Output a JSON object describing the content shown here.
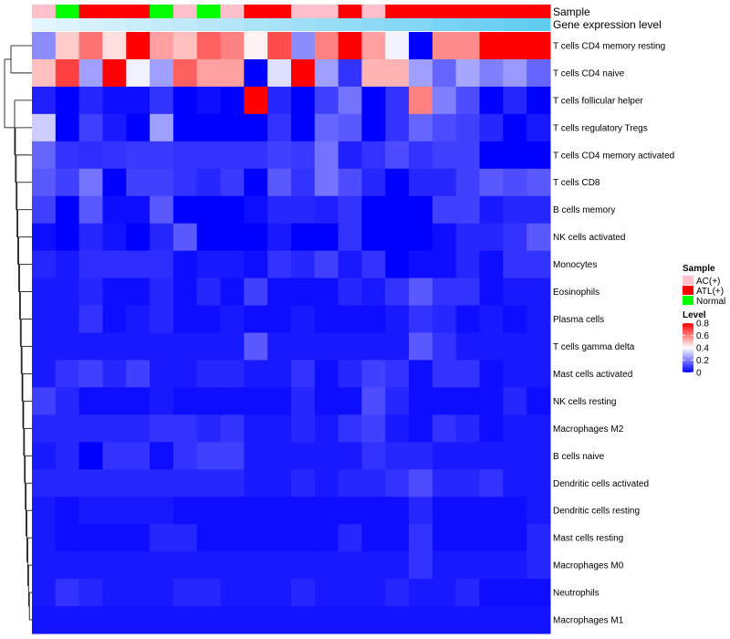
{
  "chart_data": {
    "type": "heatmap",
    "title": "",
    "annotation_tracks": {
      "sample_label": "Sample",
      "gene_label": "Gene expression level",
      "sample_groups": [
        "AC(+)",
        "Normal",
        "ATL(+)",
        "ATL(+)",
        "ATL(+)",
        "Normal",
        "AC(+)",
        "Normal",
        "AC(+)",
        "ATL(+)",
        "ATL(+)",
        "AC(+)",
        "AC(+)",
        "ATL(+)",
        "AC(+)",
        "ATL(+)",
        "ATL(+)",
        "ATL(+)",
        "ATL(+)",
        "ATL(+)",
        "ATL(+)",
        "ATL(+)"
      ],
      "gene_expression": [
        0.02,
        0.07,
        0.11,
        0.16,
        0.2,
        0.25,
        0.29,
        0.34,
        0.38,
        0.43,
        0.47,
        0.52,
        0.56,
        0.61,
        0.65,
        0.7,
        0.74,
        0.79,
        0.83,
        0.88,
        0.92,
        0.97
      ]
    },
    "rows": [
      "T cells CD4 memory resting",
      "T cells CD4 naive",
      "T cells follicular helper",
      "T cells regulatory  Tregs",
      "T cells CD4 memory activated",
      "T cells CD8",
      "B cells memory",
      "NK cells activated",
      "Monocytes",
      "Eosinophils",
      "Plasma cells",
      "T cells gamma delta",
      "Mast cells activated",
      "NK cells resting",
      "Macrophages M2",
      "B cells naive",
      "Dendritic cells activated",
      "Dendritic cells resting",
      "Mast cells resting",
      "Macrophages M0",
      "Neutrophils",
      "Macrophages M1"
    ],
    "values": [
      [
        0.22,
        0.48,
        0.62,
        0.45,
        0.8,
        0.55,
        0.5,
        0.65,
        0.6,
        0.42,
        0.68,
        0.22,
        0.6,
        0.8,
        0.55,
        0.38,
        0.0,
        0.58,
        0.58,
        0.8,
        0.8,
        0.8
      ],
      [
        0.5,
        0.7,
        0.25,
        0.8,
        0.38,
        0.25,
        0.65,
        0.55,
        0.55,
        0.0,
        0.35,
        0.8,
        0.25,
        0.08,
        0.52,
        0.52,
        0.25,
        0.16,
        0.26,
        0.2,
        0.24,
        0.16
      ],
      [
        0.05,
        0.0,
        0.06,
        0.02,
        0.02,
        0.08,
        0.0,
        0.02,
        0.0,
        0.8,
        0.06,
        0.0,
        0.1,
        0.18,
        0.0,
        0.08,
        0.6,
        0.2,
        0.12,
        0.0,
        0.06,
        0.0
      ],
      [
        0.32,
        0.0,
        0.1,
        0.04,
        0.0,
        0.25,
        0.0,
        0.0,
        0.0,
        0.0,
        0.08,
        0.0,
        0.16,
        0.14,
        0.0,
        0.08,
        0.16,
        0.12,
        0.1,
        0.06,
        0.0,
        0.04
      ],
      [
        0.16,
        0.08,
        0.07,
        0.08,
        0.09,
        0.09,
        0.08,
        0.08,
        0.08,
        0.08,
        0.1,
        0.09,
        0.18,
        0.05,
        0.08,
        0.12,
        0.08,
        0.1,
        0.1,
        0.0,
        0.0,
        0.0
      ],
      [
        0.14,
        0.1,
        0.18,
        0.0,
        0.1,
        0.1,
        0.08,
        0.06,
        0.09,
        0.0,
        0.14,
        0.08,
        0.18,
        0.12,
        0.06,
        0.0,
        0.06,
        0.06,
        0.1,
        0.14,
        0.12,
        0.14
      ],
      [
        0.1,
        0.0,
        0.14,
        0.02,
        0.02,
        0.14,
        0.0,
        0.0,
        0.0,
        0.02,
        0.06,
        0.06,
        0.05,
        0.08,
        0.0,
        0.0,
        0.0,
        0.1,
        0.1,
        0.04,
        0.06,
        0.06
      ],
      [
        0.02,
        0.0,
        0.06,
        0.03,
        0.0,
        0.06,
        0.14,
        0.0,
        0.0,
        0.0,
        0.04,
        0.0,
        0.0,
        0.08,
        0.0,
        0.0,
        0.0,
        0.02,
        0.06,
        0.06,
        0.08,
        0.14
      ],
      [
        0.06,
        0.04,
        0.07,
        0.07,
        0.07,
        0.07,
        0.02,
        0.04,
        0.04,
        0.02,
        0.08,
        0.06,
        0.1,
        0.04,
        0.08,
        0.0,
        0.02,
        0.02,
        0.06,
        0.02,
        0.08,
        0.08
      ],
      [
        0.04,
        0.04,
        0.06,
        0.02,
        0.02,
        0.06,
        0.02,
        0.06,
        0.02,
        0.1,
        0.02,
        0.02,
        0.02,
        0.06,
        0.04,
        0.08,
        0.14,
        0.08,
        0.08,
        0.02,
        0.04,
        0.04
      ],
      [
        0.04,
        0.04,
        0.08,
        0.02,
        0.04,
        0.06,
        0.02,
        0.02,
        0.04,
        0.02,
        0.02,
        0.04,
        0.02,
        0.02,
        0.02,
        0.04,
        0.08,
        0.06,
        0.02,
        0.04,
        0.02,
        0.04
      ],
      [
        0.04,
        0.04,
        0.04,
        0.04,
        0.04,
        0.04,
        0.04,
        0.04,
        0.04,
        0.14,
        0.04,
        0.04,
        0.04,
        0.04,
        0.04,
        0.04,
        0.14,
        0.08,
        0.04,
        0.04,
        0.04,
        0.04
      ],
      [
        0.04,
        0.08,
        0.1,
        0.06,
        0.1,
        0.04,
        0.04,
        0.06,
        0.06,
        0.04,
        0.04,
        0.08,
        0.02,
        0.06,
        0.1,
        0.08,
        0.02,
        0.08,
        0.08,
        0.02,
        0.04,
        0.04
      ],
      [
        0.1,
        0.06,
        0.02,
        0.02,
        0.02,
        0.04,
        0.02,
        0.02,
        0.02,
        0.02,
        0.02,
        0.06,
        0.02,
        0.02,
        0.12,
        0.06,
        0.02,
        0.02,
        0.02,
        0.02,
        0.06,
        0.02
      ],
      [
        0.06,
        0.06,
        0.06,
        0.06,
        0.06,
        0.08,
        0.08,
        0.06,
        0.08,
        0.04,
        0.04,
        0.06,
        0.04,
        0.08,
        0.1,
        0.04,
        0.02,
        0.08,
        0.06,
        0.02,
        0.04,
        0.04
      ],
      [
        0.04,
        0.06,
        0.0,
        0.08,
        0.08,
        0.02,
        0.08,
        0.1,
        0.1,
        0.04,
        0.04,
        0.04,
        0.04,
        0.04,
        0.08,
        0.06,
        0.06,
        0.04,
        0.04,
        0.04,
        0.04,
        0.04
      ],
      [
        0.06,
        0.06,
        0.06,
        0.06,
        0.06,
        0.06,
        0.06,
        0.06,
        0.06,
        0.04,
        0.04,
        0.06,
        0.04,
        0.06,
        0.06,
        0.08,
        0.12,
        0.06,
        0.06,
        0.08,
        0.04,
        0.04
      ],
      [
        0.04,
        0.02,
        0.04,
        0.04,
        0.04,
        0.04,
        0.02,
        0.02,
        0.02,
        0.02,
        0.02,
        0.02,
        0.02,
        0.02,
        0.02,
        0.02,
        0.06,
        0.02,
        0.02,
        0.02,
        0.02,
        0.04
      ],
      [
        0.04,
        0.02,
        0.02,
        0.02,
        0.02,
        0.06,
        0.06,
        0.02,
        0.02,
        0.02,
        0.02,
        0.02,
        0.02,
        0.06,
        0.02,
        0.02,
        0.08,
        0.02,
        0.02,
        0.02,
        0.02,
        0.06
      ],
      [
        0.04,
        0.04,
        0.04,
        0.04,
        0.04,
        0.04,
        0.04,
        0.04,
        0.04,
        0.04,
        0.04,
        0.04,
        0.04,
        0.04,
        0.04,
        0.04,
        0.08,
        0.04,
        0.04,
        0.04,
        0.04,
        0.06
      ],
      [
        0.04,
        0.08,
        0.06,
        0.04,
        0.04,
        0.04,
        0.06,
        0.06,
        0.04,
        0.04,
        0.04,
        0.06,
        0.04,
        0.04,
        0.04,
        0.06,
        0.04,
        0.04,
        0.06,
        0.02,
        0.02,
        0.02
      ],
      [
        0.03,
        0.03,
        0.03,
        0.03,
        0.03,
        0.03,
        0.03,
        0.03,
        0.03,
        0.03,
        0.03,
        0.03,
        0.03,
        0.03,
        0.03,
        0.03,
        0.03,
        0.03,
        0.03,
        0.03,
        0.03,
        0.03
      ]
    ],
    "value_range": [
      0,
      0.8
    ],
    "colorscale": [
      "#0000ff",
      "#ffffff",
      "#ff0000"
    ],
    "legend": {
      "sample_title": "Sample",
      "sample_items": [
        {
          "label": "AC(+)",
          "color": "#ffc0cb"
        },
        {
          "label": "ATL(+)",
          "color": "#ff0000"
        },
        {
          "label": "Normal",
          "color": "#00ff00"
        }
      ],
      "level_title": "Level",
      "level_ticks": [
        0.8,
        0.6,
        0.4,
        0.2,
        0
      ],
      "placement": "right"
    },
    "gene_track_colors": [
      "#e6f6fd",
      "#5ccbf0"
    ],
    "dendrogram": "rows, left side"
  }
}
